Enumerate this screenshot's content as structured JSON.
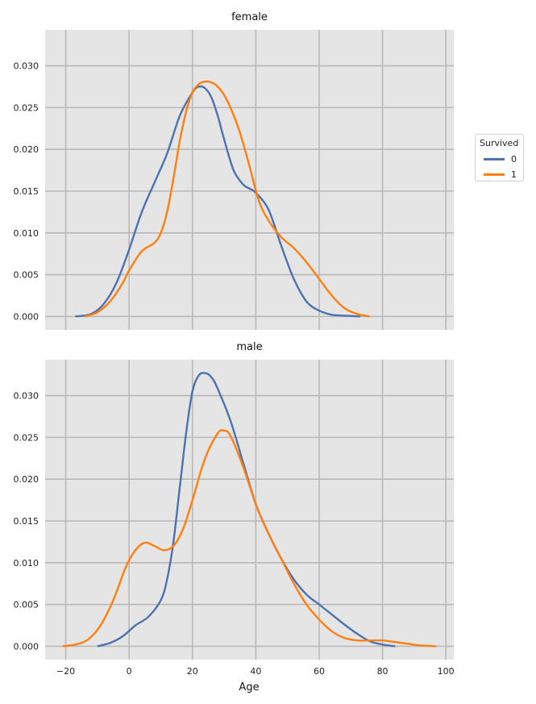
{
  "chart_data": {
    "type": "line",
    "kind": "kde",
    "xlabel": "Age",
    "ylabel": "",
    "xlim": [
      -26.5,
      102.5
    ],
    "x_ticks": [
      -20,
      0,
      20,
      40,
      60,
      80,
      100
    ],
    "x_tick_labels": [
      "−20",
      "0",
      "20",
      "40",
      "60",
      "80",
      "100"
    ],
    "y_ticks": [
      0.0,
      0.005,
      0.01,
      0.015,
      0.02,
      0.025,
      0.03
    ],
    "y_tick_labels": [
      "0.000",
      "0.005",
      "0.010",
      "0.015",
      "0.020",
      "0.025",
      "0.030"
    ],
    "grid": true,
    "legend": {
      "title": "Survived",
      "position": "right",
      "entries": [
        {
          "label": "0",
          "color": "#4c72b0"
        },
        {
          "label": "1",
          "color": "#ff7f0e"
        }
      ]
    },
    "panels": [
      {
        "title": "female",
        "ylim": [
          -0.0016,
          0.0343
        ],
        "series": [
          {
            "name": "0",
            "color": "#4c72b0",
            "x": [
              -17,
              -12,
              -8,
              -4,
              0,
              4,
              8,
              12,
              16,
              20,
              22,
              24,
              26,
              28,
              30,
              33,
              36,
              38,
              40,
              44,
              48,
              52,
              56,
              60,
              64,
              68,
              73
            ],
            "y": [
              0.0,
              0.0003,
              0.0015,
              0.004,
              0.008,
              0.0125,
              0.016,
              0.0195,
              0.024,
              0.0268,
              0.0275,
              0.0273,
              0.0262,
              0.024,
              0.0212,
              0.0175,
              0.0158,
              0.0153,
              0.0148,
              0.0128,
              0.0085,
              0.0045,
              0.0018,
              0.0007,
              0.0002,
              0.0001,
              0.0
            ]
          },
          {
            "name": "1",
            "color": "#ff7f0e",
            "x": [
              -14,
              -10,
              -6,
              -2,
              0,
              4,
              8,
              10,
              12,
              14,
              16,
              18,
              20,
              22,
              24,
              26,
              28,
              30,
              32,
              35,
              38,
              41,
              44,
              48,
              52,
              56,
              60,
              64,
              68,
              72,
              76
            ],
            "y": [
              0.0,
              0.0005,
              0.0018,
              0.004,
              0.0055,
              0.0078,
              0.0088,
              0.01,
              0.0125,
              0.0165,
              0.021,
              0.0245,
              0.0268,
              0.0278,
              0.0281,
              0.028,
              0.0275,
              0.0265,
              0.025,
              0.022,
              0.018,
              0.0138,
              0.0115,
              0.0095,
              0.0082,
              0.0065,
              0.0045,
              0.0025,
              0.001,
              0.0003,
              0.0
            ]
          }
        ]
      },
      {
        "title": "male",
        "ylim": [
          -0.0016,
          0.0343
        ],
        "series": [
          {
            "name": "0",
            "color": "#4c72b0",
            "x": [
              -10,
              -6,
              -2,
              2,
              6,
              10,
              12,
              14,
              16,
              18,
              20,
              22,
              24,
              26,
              28,
              32,
              36,
              40,
              44,
              48,
              52,
              56,
              60,
              64,
              68,
              72,
              76,
              80,
              84
            ],
            "y": [
              0.0,
              0.0004,
              0.0012,
              0.0025,
              0.0035,
              0.0055,
              0.008,
              0.0125,
              0.019,
              0.0255,
              0.0305,
              0.0324,
              0.0327,
              0.0322,
              0.0308,
              0.027,
              0.022,
              0.017,
              0.0135,
              0.0105,
              0.008,
              0.0062,
              0.005,
              0.0038,
              0.0026,
              0.0015,
              0.0006,
              0.0002,
              0.0
            ]
          },
          {
            "name": "1",
            "color": "#ff7f0e",
            "x": [
              -21,
              -17,
              -13,
              -9,
              -5,
              -1,
              2,
              5,
              8,
              11,
              14,
              17,
              20,
              24,
              28,
              30,
              32,
              36,
              40,
              44,
              48,
              52,
              56,
              60,
              64,
              68,
              72,
              76,
              80,
              84,
              88,
              92,
              97
            ],
            "y": [
              0.0,
              0.0002,
              0.0008,
              0.0025,
              0.0055,
              0.0095,
              0.0115,
              0.0124,
              0.012,
              0.0115,
              0.012,
              0.014,
              0.0175,
              0.0225,
              0.0255,
              0.0258,
              0.0252,
              0.0215,
              0.017,
              0.0135,
              0.0105,
              0.0075,
              0.005,
              0.0032,
              0.0018,
              0.001,
              0.0007,
              0.0007,
              0.0007,
              0.0005,
              0.0003,
              0.0001,
              0.0
            ]
          }
        ]
      }
    ]
  }
}
